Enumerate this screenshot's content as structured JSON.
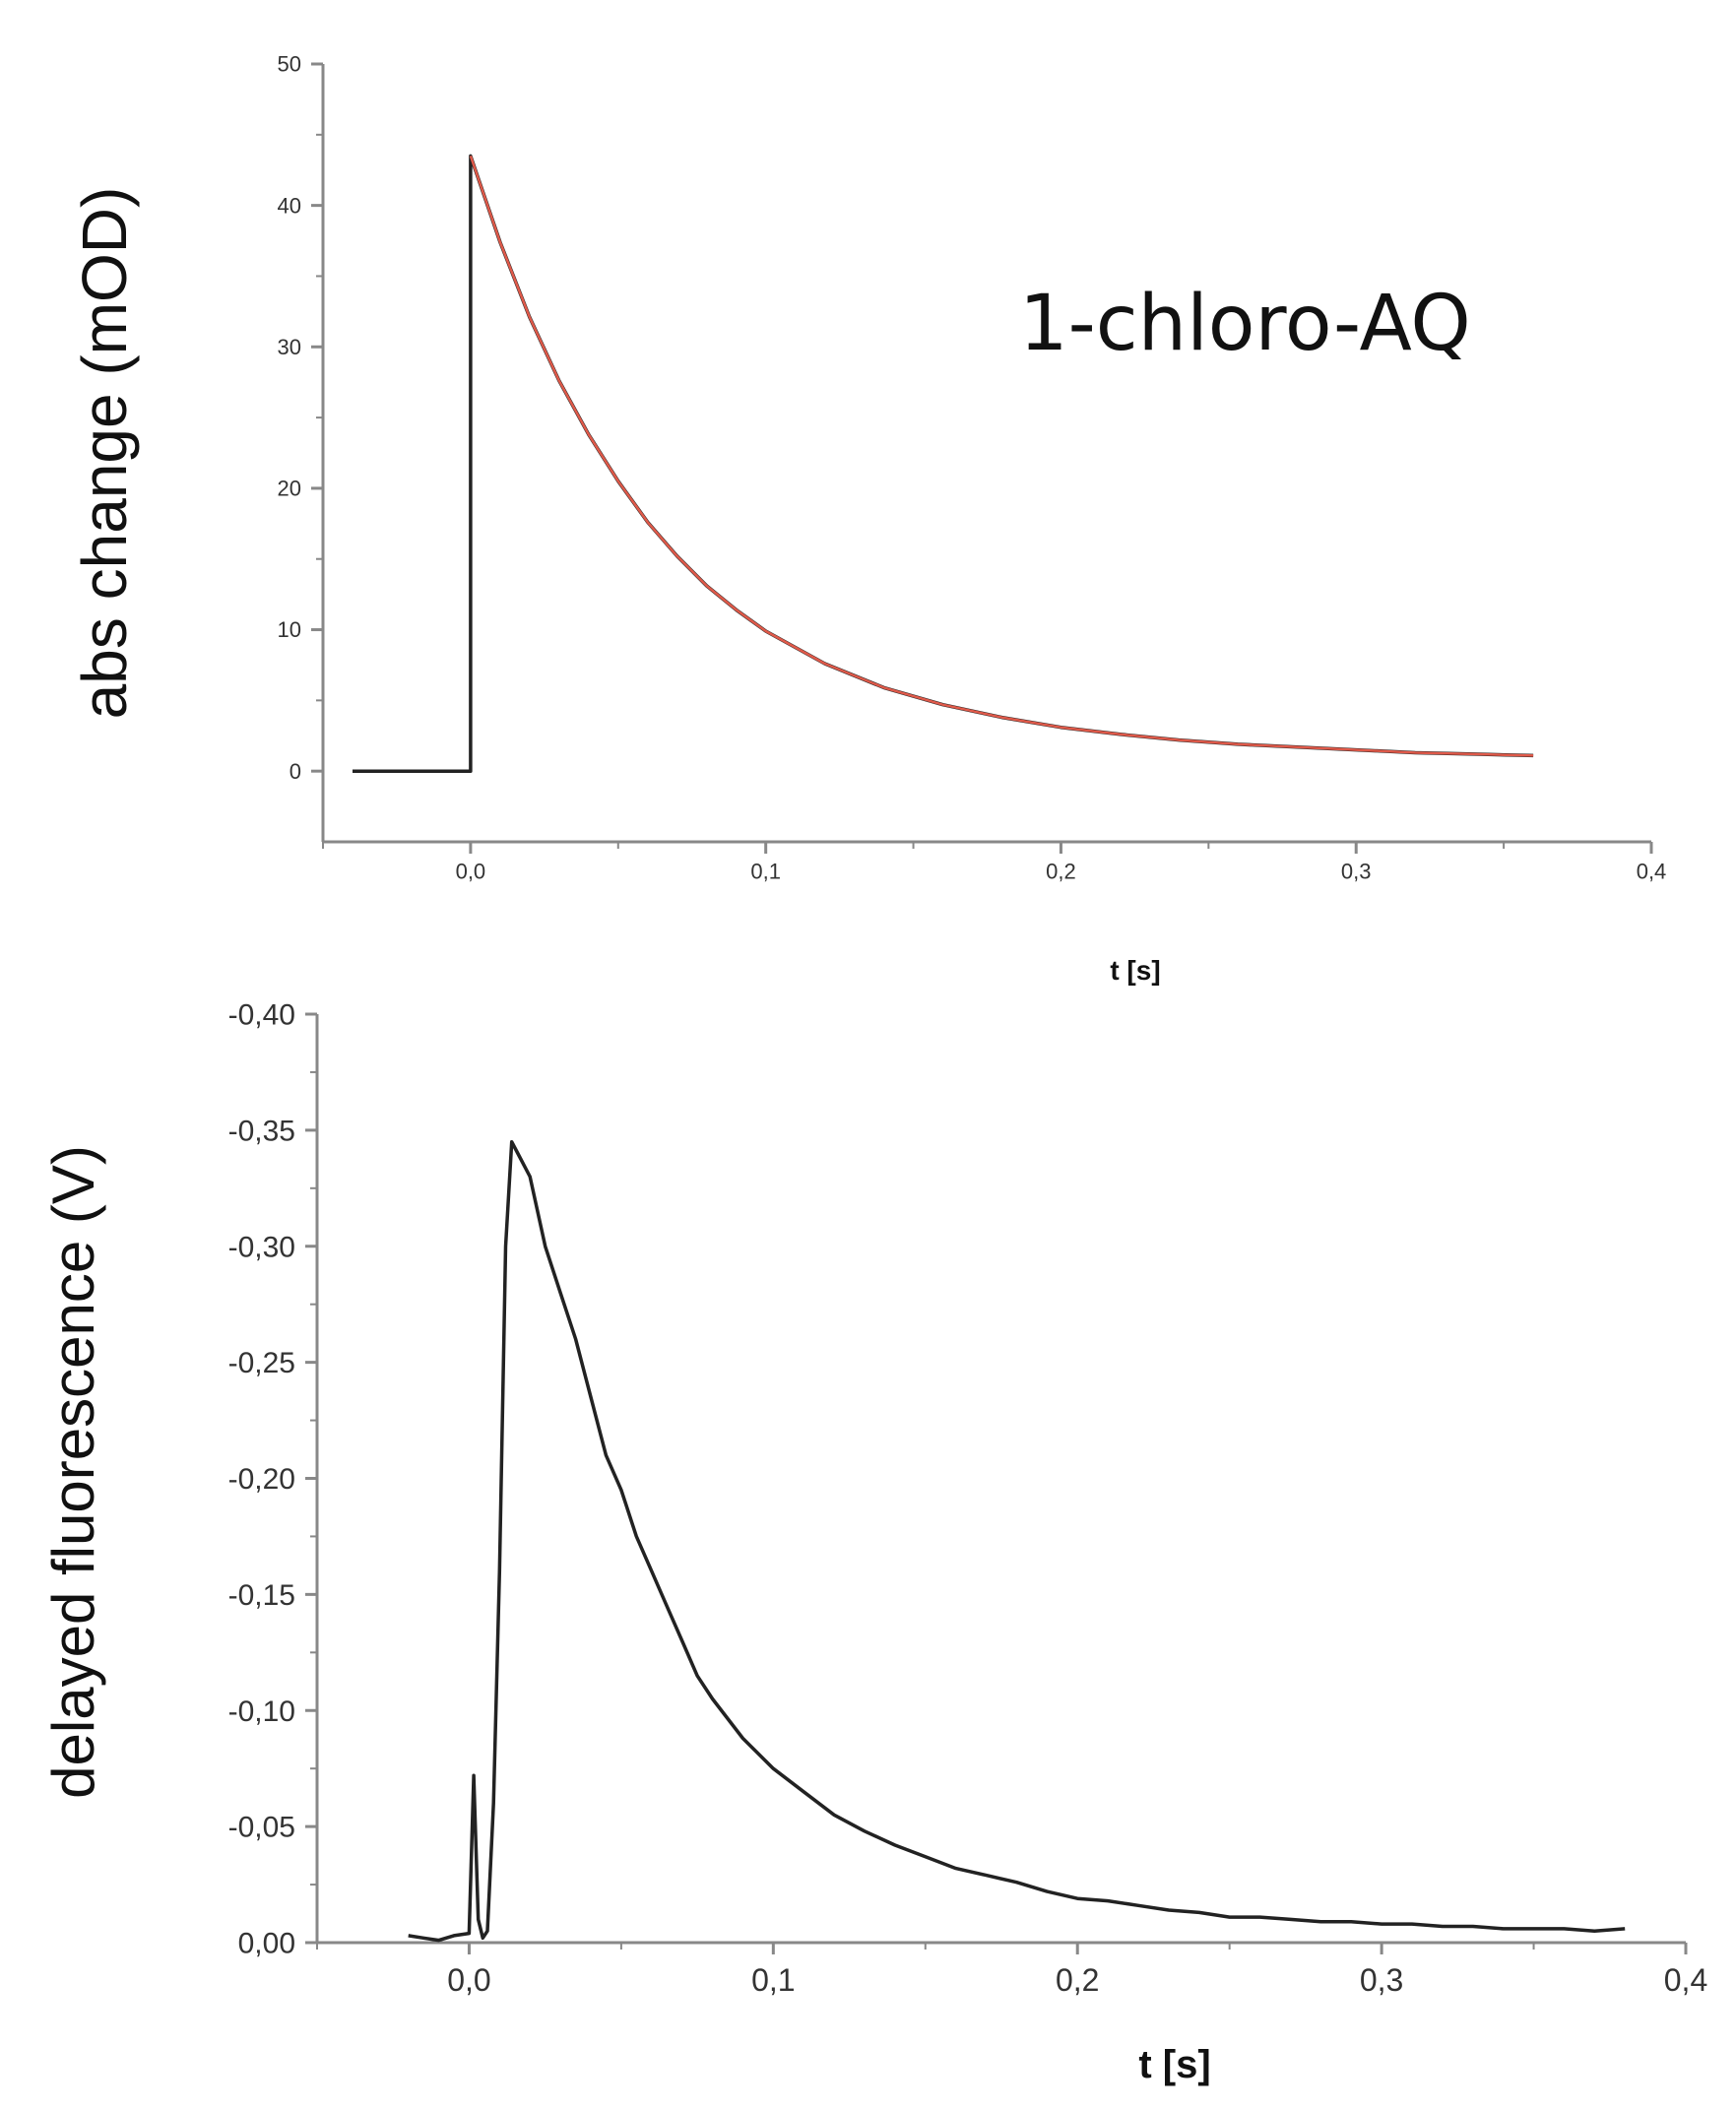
{
  "chart_data": [
    {
      "type": "line",
      "annotation": "1-chloro-AQ",
      "xlabel": "t [s]",
      "ylabel": "abs change (mOD)",
      "xlim": [
        -0.05,
        0.4
      ],
      "ylim": [
        -5,
        50
      ],
      "xticks": [
        "0,0",
        "0,1",
        "0,2",
        "0,3",
        "0,4"
      ],
      "xtick_values": [
        0.0,
        0.1,
        0.2,
        0.3,
        0.4
      ],
      "yticks": [
        "0",
        "10",
        "20",
        "30",
        "40",
        "50"
      ],
      "ytick_values": [
        0,
        10,
        20,
        30,
        40,
        50
      ],
      "grid": false,
      "series": [
        {
          "color": "#222222",
          "x": [
            -0.04,
            -0.03,
            -0.02,
            -0.01,
            0.0,
            0.0,
            0.01,
            0.02,
            0.03,
            0.04,
            0.05,
            0.06,
            0.07,
            0.08,
            0.09,
            0.1,
            0.12,
            0.14,
            0.16,
            0.18,
            0.2,
            0.22,
            0.24,
            0.26,
            0.28,
            0.3,
            0.32,
            0.34,
            0.36
          ],
          "y": [
            0,
            0,
            0,
            0,
            0,
            43.5,
            37.4,
            32.1,
            27.6,
            23.8,
            20.5,
            17.6,
            15.2,
            13.1,
            11.4,
            9.9,
            7.6,
            5.9,
            4.7,
            3.8,
            3.1,
            2.6,
            2.2,
            1.9,
            1.7,
            1.5,
            1.3,
            1.2,
            1.1
          ]
        },
        {
          "color": "#e05a4a",
          "x": [
            0.0,
            0.01,
            0.02,
            0.03,
            0.04,
            0.05,
            0.06,
            0.07,
            0.08,
            0.09,
            0.1,
            0.12,
            0.14,
            0.16,
            0.18,
            0.2,
            0.22,
            0.24,
            0.26,
            0.28,
            0.3,
            0.32,
            0.34,
            0.36
          ],
          "y": [
            43.5,
            37.4,
            32.1,
            27.6,
            23.8,
            20.5,
            17.6,
            15.2,
            13.1,
            11.4,
            9.9,
            7.6,
            5.9,
            4.7,
            3.8,
            3.1,
            2.6,
            2.2,
            1.9,
            1.7,
            1.5,
            1.3,
            1.2,
            1.1
          ]
        }
      ]
    },
    {
      "type": "line",
      "xlabel": "t [s]",
      "ylabel": "delayed fluorescence (V)",
      "xlim": [
        -0.05,
        0.4
      ],
      "ylim": [
        0.0,
        -0.4
      ],
      "xticks": [
        "0,0",
        "0,1",
        "0,2",
        "0,3",
        "0,4"
      ],
      "xtick_values": [
        0.0,
        0.1,
        0.2,
        0.3,
        0.4
      ],
      "yticks": [
        "0,00",
        "-0,05",
        "-0,10",
        "-0,15",
        "-0,20",
        "-0,25",
        "-0,30",
        "-0,35",
        "-0,40"
      ],
      "ytick_values": [
        0.0,
        -0.05,
        -0.1,
        -0.15,
        -0.2,
        -0.25,
        -0.3,
        -0.35,
        -0.4
      ],
      "grid": false,
      "series": [
        {
          "color": "#222222",
          "x": [
            -0.02,
            -0.015,
            -0.01,
            -0.005,
            0.0,
            0.0015,
            0.003,
            0.0045,
            0.006,
            0.008,
            0.01,
            0.012,
            0.014,
            0.016,
            0.02,
            0.025,
            0.03,
            0.035,
            0.04,
            0.045,
            0.05,
            0.055,
            0.06,
            0.065,
            0.07,
            0.075,
            0.08,
            0.09,
            0.1,
            0.11,
            0.12,
            0.13,
            0.14,
            0.15,
            0.16,
            0.17,
            0.18,
            0.19,
            0.2,
            0.21,
            0.22,
            0.23,
            0.24,
            0.25,
            0.26,
            0.27,
            0.28,
            0.29,
            0.3,
            0.31,
            0.32,
            0.33,
            0.34,
            0.35,
            0.36,
            0.37,
            0.38
          ],
          "y": [
            -0.003,
            -0.002,
            -0.001,
            -0.003,
            -0.004,
            -0.072,
            -0.01,
            -0.002,
            -0.005,
            -0.06,
            -0.16,
            -0.3,
            -0.345,
            -0.34,
            -0.33,
            -0.3,
            -0.28,
            -0.26,
            -0.235,
            -0.21,
            -0.195,
            -0.175,
            -0.16,
            -0.145,
            -0.13,
            -0.115,
            -0.105,
            -0.088,
            -0.075,
            -0.065,
            -0.055,
            -0.048,
            -0.042,
            -0.037,
            -0.032,
            -0.029,
            -0.026,
            -0.022,
            -0.019,
            -0.018,
            -0.016,
            -0.014,
            -0.013,
            -0.011,
            -0.011,
            -0.01,
            -0.009,
            -0.009,
            -0.008,
            -0.008,
            -0.007,
            -0.007,
            -0.006,
            -0.006,
            -0.006,
            -0.005,
            -0.006
          ]
        }
      ]
    }
  ]
}
